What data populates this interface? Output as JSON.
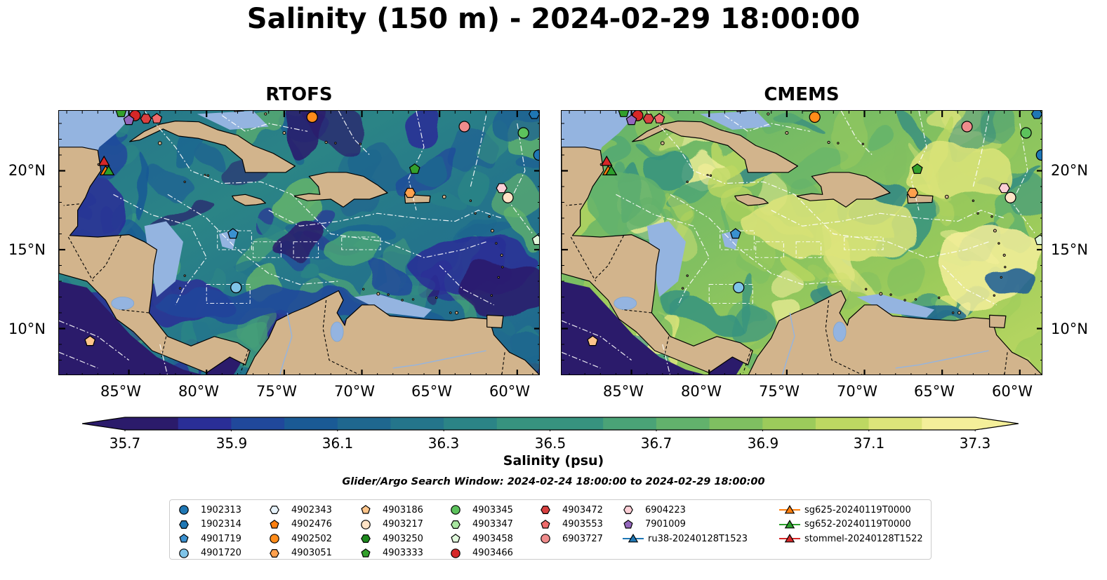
{
  "title": "Salinity (150 m) - 2024-02-29 18:00:00",
  "panels": [
    {
      "title": "RTOFS",
      "palette": "rtofs"
    },
    {
      "title": "CMEMS",
      "palette": "cmems"
    }
  ],
  "map_extent": {
    "lon_min": -89.5,
    "lon_max": -58.5,
    "lat_min": 7.0,
    "lat_max": 23.8
  },
  "lon_ticks": [
    "85°W",
    "80°W",
    "75°W",
    "70°W",
    "65°W",
    "60°W"
  ],
  "lat_ticks": [
    "20°N",
    "15°N",
    "10°N"
  ],
  "colorbar": {
    "label": "Salinity (psu)",
    "ticks": [
      "35.7",
      "35.9",
      "36.1",
      "36.3",
      "36.5",
      "36.7",
      "36.9",
      "37.1",
      "37.3"
    ],
    "colors": [
      "#2b1b6b",
      "#2a2e96",
      "#20489b",
      "#1a5a95",
      "#1f678f",
      "#24758b",
      "#2b8486",
      "#37937f",
      "#4aa377",
      "#62b26c",
      "#7fbf61",
      "#9ccb5b",
      "#bdd862",
      "#dde47a",
      "#f4ef9a"
    ]
  },
  "search_window": "Glider/Argo Search Window: 2024-02-24 18:00:00 to 2024-02-29 18:00:00",
  "legend": [
    {
      "label": "1902313",
      "marker": "circle",
      "color": "#1f77b4"
    },
    {
      "label": "1902314",
      "marker": "hexagon",
      "color": "#1f77b4"
    },
    {
      "label": "4901719",
      "marker": "pentagon",
      "color": "#3a90d0"
    },
    {
      "label": "4901720",
      "marker": "circle",
      "color": "#7fc4e8"
    },
    {
      "label": "4902343",
      "marker": "hexagon",
      "color": "#e6f2fa"
    },
    {
      "label": "4902476",
      "marker": "pentagon",
      "color": "#ff7f0e"
    },
    {
      "label": "4902502",
      "marker": "circle",
      "color": "#ff8c1a"
    },
    {
      "label": "4903051",
      "marker": "hexagon",
      "color": "#ffa04d"
    },
    {
      "label": "4903186",
      "marker": "pentagon",
      "color": "#ffc58a"
    },
    {
      "label": "4903217",
      "marker": "circle",
      "color": "#ffe3c6"
    },
    {
      "label": "4903250",
      "marker": "hexagon",
      "color": "#1e8a1e"
    },
    {
      "label": "4903333",
      "marker": "pentagon",
      "color": "#33a02c"
    },
    {
      "label": "4903345",
      "marker": "circle",
      "color": "#5cc25c"
    },
    {
      "label": "4903347",
      "marker": "hexagon",
      "color": "#a8e6a0"
    },
    {
      "label": "4903458",
      "marker": "pentagon",
      "color": "#e0f8dc"
    },
    {
      "label": "4903466",
      "marker": "circle",
      "color": "#d62728"
    },
    {
      "label": "4903472",
      "marker": "hexagon",
      "color": "#d94040"
    },
    {
      "label": "4903553",
      "marker": "pentagon",
      "color": "#ef6b6b"
    },
    {
      "label": "6903727",
      "marker": "circle",
      "color": "#f08c8c"
    },
    {
      "label": "6904223",
      "marker": "hexagon",
      "color": "#fbcfd6"
    },
    {
      "label": "7901009",
      "marker": "pentagon",
      "color": "#9467bd"
    },
    {
      "label": "ru38-20240128T1523",
      "marker": "triangle-line",
      "color": "#1f77b4"
    },
    {
      "label": "sg625-20240119T0000",
      "marker": "triangle-line",
      "color": "#ff7f0e"
    },
    {
      "label": "sg652-20240119T0000",
      "marker": "triangle-line",
      "color": "#2ca02c"
    },
    {
      "label": "stommel-20240128T1522",
      "marker": "triangle-line",
      "color": "#d62728"
    }
  ],
  "map_markers": [
    {
      "id": "4903333",
      "lon": -85.5,
      "lat": 23.7
    },
    {
      "id": "4903466",
      "lon": -84.6,
      "lat": 23.5
    },
    {
      "id": "4903472",
      "lon": -83.9,
      "lat": 23.3
    },
    {
      "id": "7901009",
      "lon": -85.0,
      "lat": 23.2
    },
    {
      "id": "4903553",
      "lon": -83.2,
      "lat": 23.3
    },
    {
      "id": "4902502",
      "lon": -73.2,
      "lat": 23.4
    },
    {
      "id": "6903727",
      "lon": -63.4,
      "lat": 22.8
    },
    {
      "id": "4903345",
      "lon": -59.6,
      "lat": 22.4
    },
    {
      "id": "1902314",
      "lon": -58.9,
      "lat": 23.6
    },
    {
      "id": "1902313",
      "lon": -58.6,
      "lat": 21.0
    },
    {
      "id": "4903333",
      "lon": -66.6,
      "lat": 20.1
    },
    {
      "id": "4903051",
      "lon": -66.9,
      "lat": 18.6
    },
    {
      "id": "6904223",
      "lon": -61.0,
      "lat": 18.9
    },
    {
      "id": "4903217",
      "lon": -60.6,
      "lat": 18.3
    },
    {
      "id": "4901719",
      "lon": -78.3,
      "lat": 16.0
    },
    {
      "id": "4903458",
      "lon": -58.7,
      "lat": 15.6
    },
    {
      "id": "4901720",
      "lon": -78.1,
      "lat": 12.6
    },
    {
      "id": "4903186",
      "lon": -87.5,
      "lat": 9.2
    },
    {
      "id": "stommel-20240128T1522",
      "lon": -86.6,
      "lat": 20.6
    },
    {
      "id": "sg625-20240119T0000",
      "lon": -86.5,
      "lat": 20.0
    },
    {
      "id": "sg652-20240119T0000",
      "lon": -86.3,
      "lat": 20.0
    }
  ]
}
